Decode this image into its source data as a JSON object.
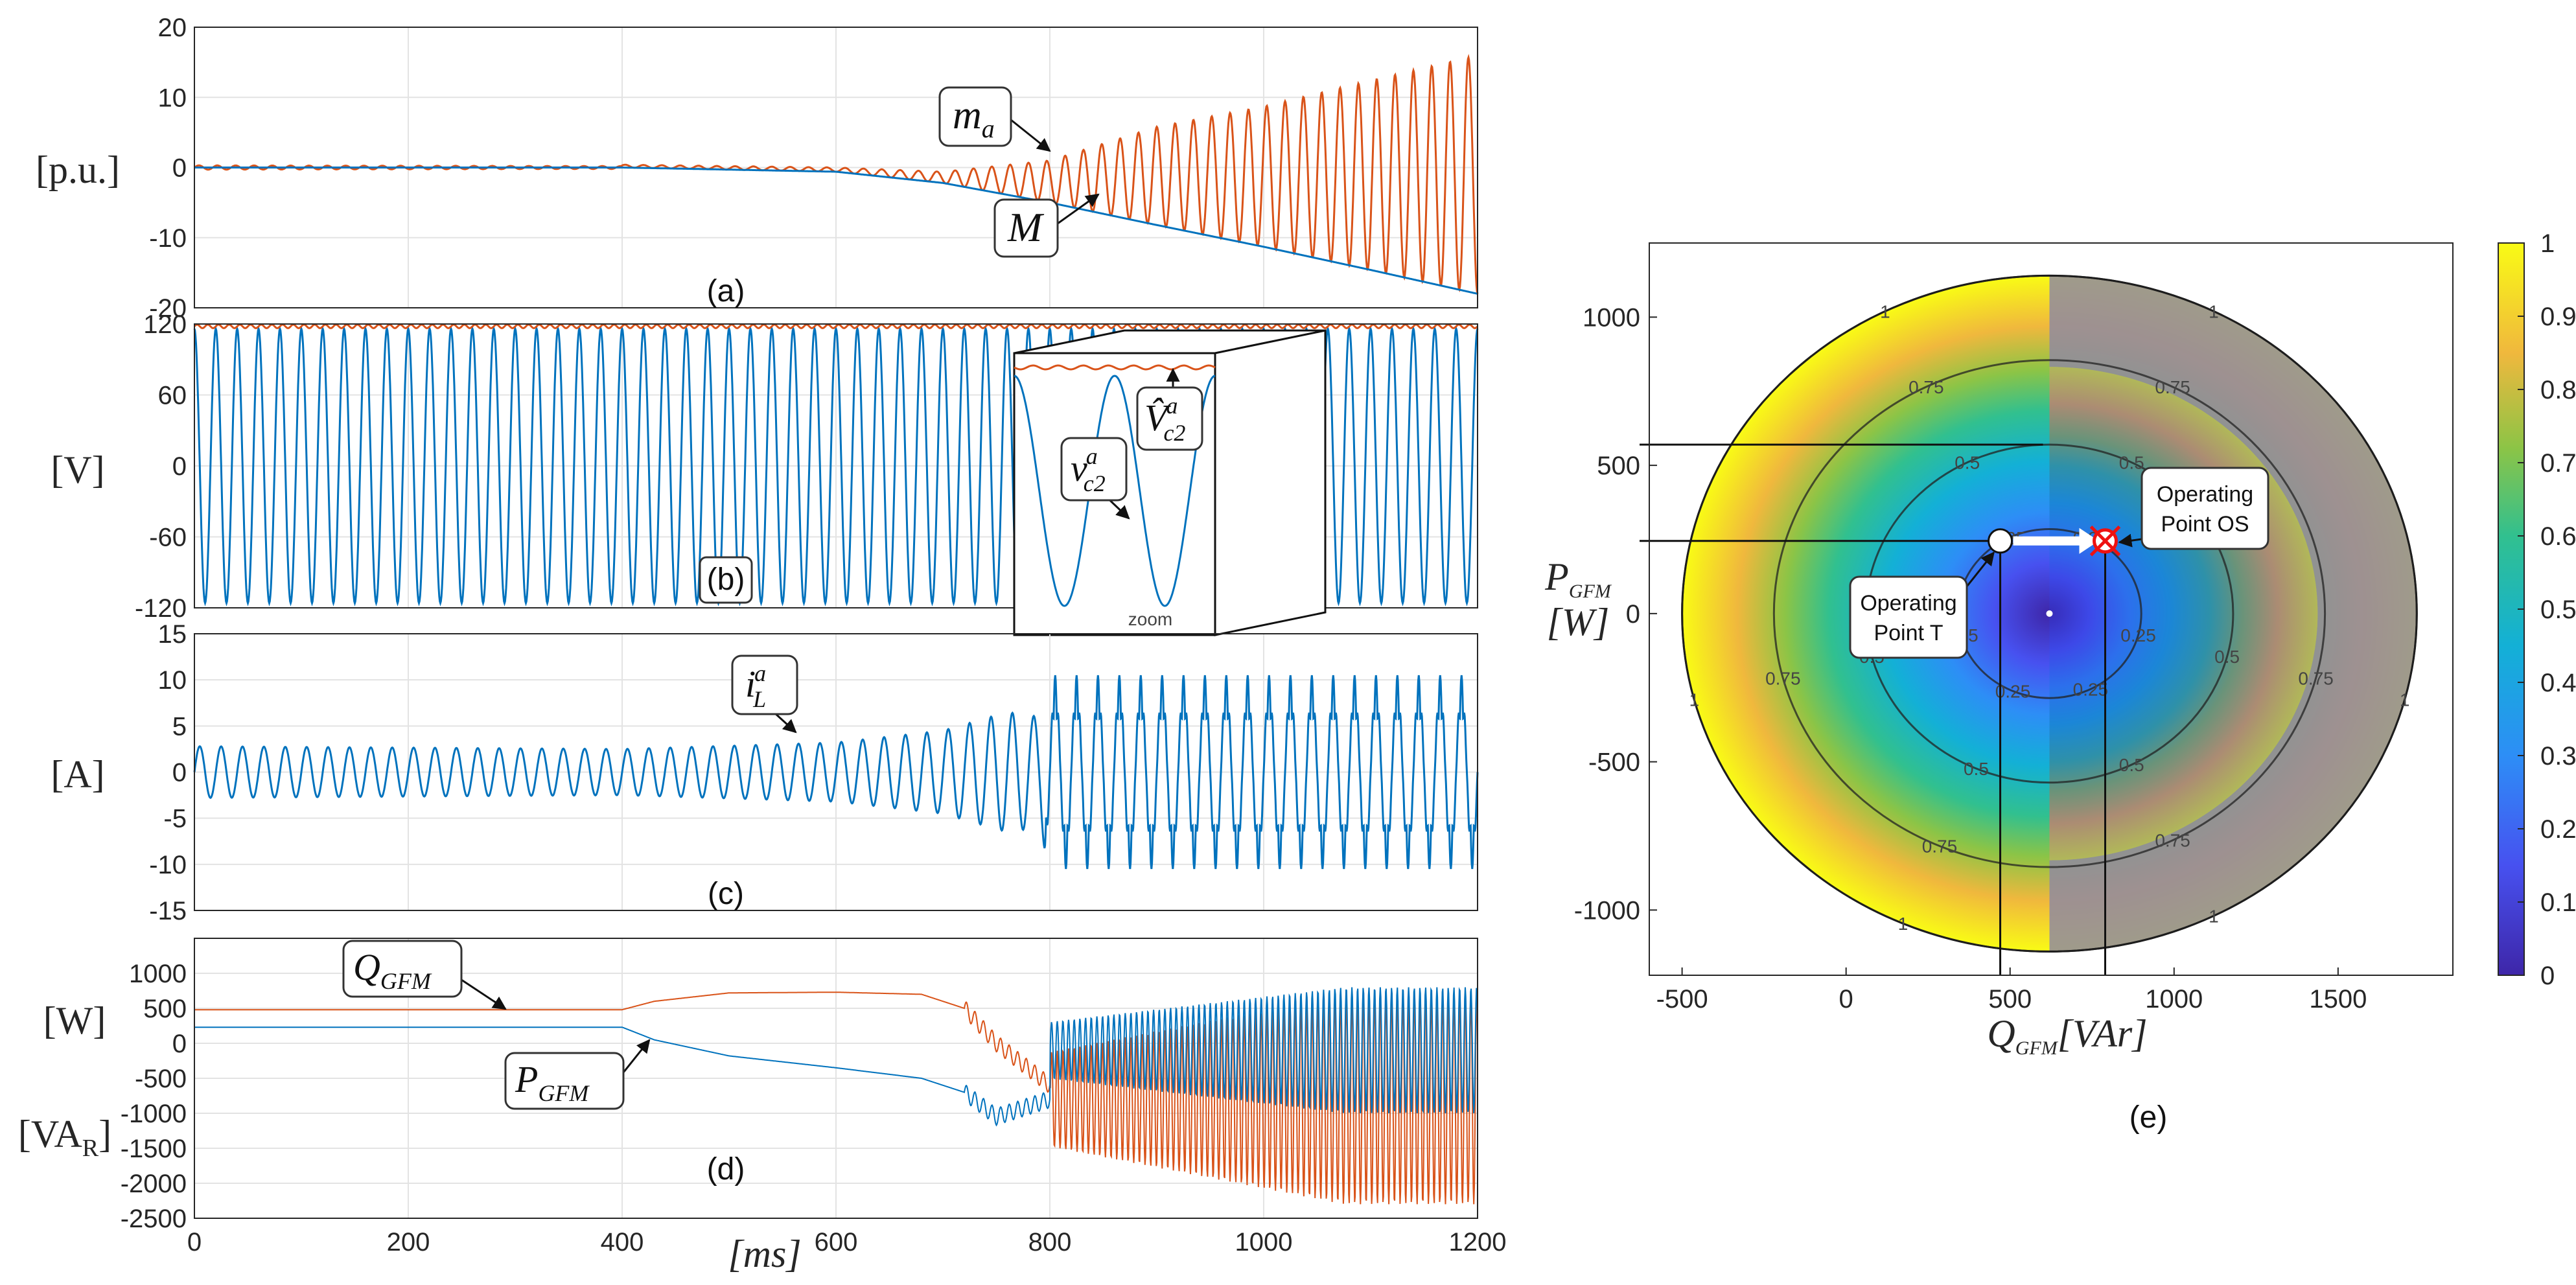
{
  "colors": {
    "orange": "#d95319",
    "blue": "#0072bd",
    "grid": "#e3e3e3"
  },
  "chart_data": [
    {
      "id": "a",
      "type": "line",
      "panel_label": "(a)",
      "ylabel": "[p.u.]",
      "xlim": [
        0,
        1200
      ],
      "ylim": [
        -20,
        20
      ],
      "yticks": [
        "20",
        "10",
        "0",
        "-10",
        "-20"
      ],
      "series": [
        {
          "name": "m_a",
          "color": "orange",
          "kind": "oscillating",
          "amp_points": [
            [
              0,
              0.3
            ],
            [
              400,
              0.2
            ],
            [
              600,
              0.3
            ],
            [
              700,
              0.8
            ],
            [
              800,
              3.0
            ],
            [
              900,
              7.0
            ],
            [
              1000,
              10.0
            ],
            [
              1100,
              13.5
            ],
            [
              1200,
              17.0
            ]
          ],
          "center": "M",
          "cycles": 70
        },
        {
          "name": "M",
          "color": "blue",
          "kind": "smooth",
          "points": [
            [
              0,
              0
            ],
            [
              400,
              0
            ],
            [
              600,
              -0.6
            ],
            [
              700,
              -2.2
            ],
            [
              800,
              -5
            ],
            [
              900,
              -8.2
            ],
            [
              1000,
              -11.3
            ],
            [
              1100,
              -14.6
            ],
            [
              1200,
              -18
            ]
          ]
        }
      ],
      "annotations": [
        {
          "text": "m",
          "sub": "a"
        },
        {
          "text": "M",
          "sub": ""
        }
      ]
    },
    {
      "id": "b",
      "type": "line",
      "panel_label": "(b)",
      "ylabel": "[V]",
      "xlim": [
        0,
        1200
      ],
      "ylim": [
        -120,
        120
      ],
      "yticks": [
        "120",
        "60",
        "0",
        "-60",
        "-120"
      ],
      "series": [
        {
          "name": "v_c2^a",
          "color": "blue",
          "kind": "sine",
          "amplitude": 116,
          "cycles": 60
        },
        {
          "name": "V̂_c2^a",
          "color": "orange",
          "kind": "ripple",
          "level": 118,
          "ripple": 1.5,
          "cycles": 120
        }
      ],
      "annotations": [
        {
          "text": "v",
          "sub": "c2",
          "sup": "a"
        },
        {
          "text": "V̂",
          "sub": "c2",
          "sup": "a"
        }
      ],
      "inset_label": "zoom"
    },
    {
      "id": "c",
      "type": "line",
      "panel_label": "(c)",
      "ylabel": "[A]",
      "xlim": [
        0,
        1200
      ],
      "ylim": [
        -15,
        15
      ],
      "yticks": [
        "15",
        "10",
        "5",
        "0",
        "-5",
        "-10",
        "-15"
      ],
      "series": [
        {
          "name": "i_L^a",
          "color": "blue",
          "kind": "current",
          "amp_points": [
            [
              0,
              2.8
            ],
            [
              400,
              2.5
            ],
            [
              600,
              3.2
            ],
            [
              700,
              4.5
            ],
            [
              760,
              6.5
            ],
            [
              790,
              6
            ],
            [
              800,
              10.5
            ],
            [
              1200,
              10.5
            ]
          ],
          "cycles": 60
        }
      ],
      "annotations": [
        {
          "text": "i",
          "sub": "L",
          "sup": "a"
        }
      ]
    },
    {
      "id": "d",
      "type": "line",
      "panel_label": "(d)",
      "ylabel": "[W]",
      "ylabel2": "[VA",
      "ylabel2_sub": "R",
      "ylabel2_end": "]",
      "xlim": [
        0,
        1200
      ],
      "ylim": [
        -2500,
        1500
      ],
      "yticks": [
        "1000",
        "500",
        "0",
        "-500",
        "-1000",
        "-1500",
        "-2000",
        "-2500"
      ],
      "xticks": [
        "0",
        "200",
        "400",
        "600",
        "800",
        "1000",
        "1200"
      ],
      "xlabel": "[ms]",
      "series": [
        {
          "name": "Q_GFM",
          "color": "orange",
          "kind": "power",
          "points": [
            [
              0,
              480
            ],
            [
              400,
              480
            ],
            [
              430,
              600
            ],
            [
              500,
              720
            ],
            [
              600,
              730
            ],
            [
              680,
              700
            ],
            [
              720,
              500
            ],
            [
              750,
              0
            ],
            [
              800,
              -600
            ]
          ],
          "osc_center": -800,
          "osc_amp": 1500
        },
        {
          "name": "P_GFM",
          "color": "blue",
          "kind": "power",
          "points": [
            [
              0,
              230
            ],
            [
              400,
              230
            ],
            [
              430,
              50
            ],
            [
              500,
              -180
            ],
            [
              600,
              -350
            ],
            [
              680,
              -500
            ],
            [
              720,
              -700
            ],
            [
              750,
              -1050
            ],
            [
              800,
              -800
            ]
          ],
          "osc_center": -100,
          "osc_amp": 900
        }
      ],
      "annotations": [
        {
          "text": "Q",
          "sub": "GFM"
        },
        {
          "text": "P",
          "sub": "GFM"
        }
      ]
    },
    {
      "id": "e",
      "type": "heatmap",
      "panel_label": "(e)",
      "xlabel": "Q",
      "xlabel_sub": "GFM",
      "xlabel_unit": "[VAr]",
      "ylabel": "P",
      "ylabel_sub": "GFM",
      "ylabel_unit": "[W]",
      "xlim": [
        -600,
        1850
      ],
      "ylim": [
        -1220,
        1250
      ],
      "xticks": [
        "-500",
        "0",
        "500",
        "1000",
        "1500"
      ],
      "yticks": [
        "1000",
        "500",
        "0",
        "-500",
        "-1000"
      ],
      "region": {
        "center_q": 620,
        "center_p": 0,
        "radius_q": 1120,
        "radius_p": 1140
      },
      "contours": [
        0.25,
        0.5,
        0.75,
        1
      ],
      "contour_labels": [
        "0.25",
        "0.5",
        "0.75",
        "1"
      ],
      "colorbar": {
        "ticks": [
          "1",
          "0.9",
          "0.8",
          "0.7",
          "0.6",
          "0.5",
          "0.4",
          "0.3",
          "0.2",
          "0.1",
          "0"
        ],
        "min": 0,
        "max": 1
      },
      "operating_points": [
        {
          "name": "Operating Point T",
          "q": 470,
          "p": 245,
          "line1": "Operating",
          "line2": "Point T"
        },
        {
          "name": "Operating Point OS",
          "q": 790,
          "p": 245,
          "line1": "Operating",
          "line2": "Point OS"
        }
      ],
      "reference_lines": {
        "p_upper": 570
      }
    }
  ]
}
